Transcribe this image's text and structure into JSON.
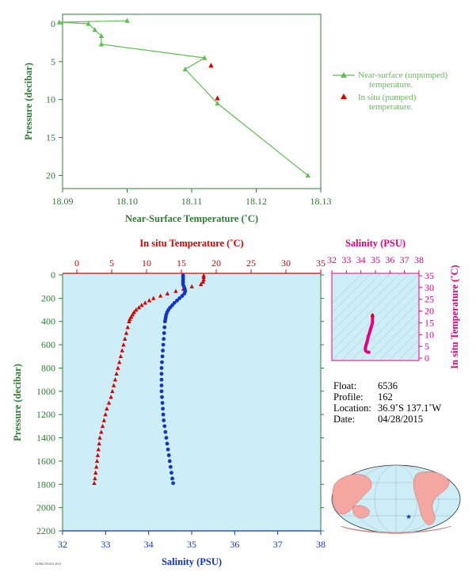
{
  "chart_data": [
    {
      "type": "line",
      "xlabel": "Near-Surface Temperature (˚C)",
      "ylabel": "Pressure (decibar)",
      "xlim": [
        18.09,
        18.13
      ],
      "ylim": [
        0,
        22
      ],
      "y_inverted": true,
      "x_ticks": [
        "18.09",
        "18.10",
        "18.11",
        "18.12",
        "18.13"
      ],
      "y_ticks": [
        "0",
        "5",
        "10",
        "15",
        "20"
      ],
      "colors": {
        "near_surface": "#5cbf4e",
        "in_situ": "#dd0000",
        "axis": "#2e7d32"
      },
      "legend_position": "right",
      "series": [
        {
          "name": "Near-surface (unpumped) temperature.",
          "marker": "triangle",
          "points": [
            {
              "x": 18.1,
              "y": -0.4
            },
            {
              "x": 18.0895,
              "y": -0.2
            },
            {
              "x": 18.094,
              "y": 0.0
            },
            {
              "x": 18.095,
              "y": 0.8
            },
            {
              "x": 18.096,
              "y": 1.6
            },
            {
              "x": 18.096,
              "y": 2.7
            },
            {
              "x": 18.112,
              "y": 4.5
            },
            {
              "x": 18.109,
              "y": 6.0
            },
            {
              "x": 18.114,
              "y": 10.5
            },
            {
              "x": 18.128,
              "y": 20.0
            }
          ]
        },
        {
          "name": "In situ (pumped) temperature.",
          "marker": "triangle",
          "points": [
            {
              "x": 18.113,
              "y": 5.5
            },
            {
              "x": 18.114,
              "y": 9.8
            }
          ]
        }
      ]
    },
    {
      "type": "scatter",
      "top_axis_label": "In situ Temperature (˚C)",
      "bottom_axis_label": "Salinity (PSU)",
      "ylabel": "Pressure (decibar)",
      "temp_lim": [
        0,
        35
      ],
      "sal_lim": [
        32,
        38
      ],
      "ylim": [
        0,
        2200
      ],
      "y_inverted": true,
      "temp_ticks": [
        "0",
        "5",
        "10",
        "15",
        "20",
        "25",
        "30",
        "35"
      ],
      "sal_ticks": [
        "32",
        "33",
        "34",
        "35",
        "36",
        "37",
        "38"
      ],
      "y_ticks": [
        "0",
        "200",
        "400",
        "600",
        "800",
        "1000",
        "1200",
        "1400",
        "1600",
        "1800",
        "2000",
        "2200"
      ],
      "background": "#cdeef7",
      "series": [
        {
          "name": "In situ Temperature",
          "color": "#dd0000",
          "marker": "triangle",
          "points": [
            [
              18.2,
              5
            ],
            [
              18.2,
              20
            ],
            [
              18.2,
              40
            ],
            [
              18.1,
              60
            ],
            [
              17.8,
              80
            ],
            [
              16.5,
              100
            ],
            [
              15.3,
              120
            ],
            [
              14.2,
              140
            ],
            [
              13.0,
              160
            ],
            [
              12.0,
              180
            ],
            [
              11.0,
              200
            ],
            [
              10.4,
              220
            ],
            [
              9.8,
              240
            ],
            [
              9.3,
              260
            ],
            [
              8.9,
              280
            ],
            [
              8.5,
              300
            ],
            [
              8.2,
              320
            ],
            [
              8.0,
              340
            ],
            [
              7.8,
              360
            ],
            [
              7.6,
              380
            ],
            [
              7.5,
              400
            ],
            [
              7.3,
              450
            ],
            [
              7.1,
              500
            ],
            [
              6.9,
              550
            ],
            [
              6.7,
              600
            ],
            [
              6.5,
              650
            ],
            [
              6.3,
              700
            ],
            [
              6.1,
              750
            ],
            [
              5.9,
              800
            ],
            [
              5.7,
              850
            ],
            [
              5.5,
              900
            ],
            [
              5.3,
              950
            ],
            [
              5.1,
              1000
            ],
            [
              4.9,
              1050
            ],
            [
              4.6,
              1100
            ],
            [
              4.3,
              1150
            ],
            [
              4.1,
              1200
            ],
            [
              3.9,
              1250
            ],
            [
              3.7,
              1300
            ],
            [
              3.5,
              1350
            ],
            [
              3.3,
              1400
            ],
            [
              3.2,
              1450
            ],
            [
              3.1,
              1500
            ],
            [
              3.0,
              1550
            ],
            [
              2.9,
              1600
            ],
            [
              2.8,
              1650
            ],
            [
              2.7,
              1700
            ],
            [
              2.6,
              1750
            ],
            [
              2.5,
              1790
            ]
          ]
        },
        {
          "name": "Salinity",
          "color": "#1133cc",
          "marker": "dot",
          "points": [
            [
              34.8,
              5
            ],
            [
              34.8,
              20
            ],
            [
              34.8,
              40
            ],
            [
              34.8,
              60
            ],
            [
              34.8,
              80
            ],
            [
              34.82,
              100
            ],
            [
              34.84,
              120
            ],
            [
              34.85,
              140
            ],
            [
              34.83,
              160
            ],
            [
              34.78,
              180
            ],
            [
              34.72,
              200
            ],
            [
              34.66,
              220
            ],
            [
              34.6,
              240
            ],
            [
              34.55,
              260
            ],
            [
              34.5,
              280
            ],
            [
              34.46,
              300
            ],
            [
              34.43,
              320
            ],
            [
              34.41,
              340
            ],
            [
              34.4,
              360
            ],
            [
              34.39,
              380
            ],
            [
              34.38,
              400
            ],
            [
              34.37,
              450
            ],
            [
              34.36,
              500
            ],
            [
              34.35,
              550
            ],
            [
              34.34,
              600
            ],
            [
              34.33,
              650
            ],
            [
              34.32,
              700
            ],
            [
              34.31,
              750
            ],
            [
              34.3,
              800
            ],
            [
              34.3,
              850
            ],
            [
              34.3,
              900
            ],
            [
              34.3,
              950
            ],
            [
              34.3,
              1000
            ],
            [
              34.31,
              1050
            ],
            [
              34.32,
              1100
            ],
            [
              34.33,
              1150
            ],
            [
              34.34,
              1200
            ],
            [
              34.35,
              1250
            ],
            [
              34.37,
              1300
            ],
            [
              34.39,
              1350
            ],
            [
              34.41,
              1400
            ],
            [
              34.43,
              1450
            ],
            [
              34.45,
              1500
            ],
            [
              34.47,
              1550
            ],
            [
              34.49,
              1600
            ],
            [
              34.51,
              1650
            ],
            [
              34.53,
              1700
            ],
            [
              34.55,
              1750
            ],
            [
              34.57,
              1790
            ]
          ]
        }
      ]
    },
    {
      "type": "scatter",
      "title": "Salinity (PSU)",
      "ylabel": "In situ Temperature (˚C)",
      "sal_lim": [
        32,
        38
      ],
      "temp_lim": [
        -1,
        36
      ],
      "sal_ticks": [
        "32",
        "33",
        "34",
        "35",
        "36",
        "37",
        "38"
      ],
      "temp_ticks": [
        "0",
        "5",
        "10",
        "15",
        "20",
        "25",
        "30",
        "35"
      ],
      "grid": "density contours",
      "series": [
        {
          "name": "T-S",
          "color": "#e6007e",
          "points": [
            [
              34.8,
              18.2
            ],
            [
              34.8,
              16.5
            ],
            [
              34.8,
              15.0
            ],
            [
              34.7,
              13.0
            ],
            [
              34.6,
              11.0
            ],
            [
              34.5,
              9.0
            ],
            [
              34.45,
              7.5
            ],
            [
              34.4,
              6.5
            ],
            [
              34.35,
              5.5
            ],
            [
              34.32,
              4.5
            ],
            [
              34.3,
              3.8
            ],
            [
              34.32,
              3.2
            ],
            [
              34.38,
              2.8
            ],
            [
              34.45,
              2.6
            ],
            [
              34.55,
              2.5
            ]
          ]
        }
      ]
    }
  ],
  "info": {
    "float_label": "Float:",
    "float_value": "6536",
    "profile_label": "Profile:",
    "profile_value": "162",
    "location_label": "Location:",
    "location_value": "36.9˚S  137.1˚W",
    "date_label": "Date:",
    "date_value": "04/28/2015"
  },
  "map": {
    "marker": "★",
    "colors": {
      "ocean": "#cdeef7",
      "land": "#f4a6a0",
      "marker": "#1133cc"
    }
  },
  "footer_text": "AOML/NOAA 2015"
}
